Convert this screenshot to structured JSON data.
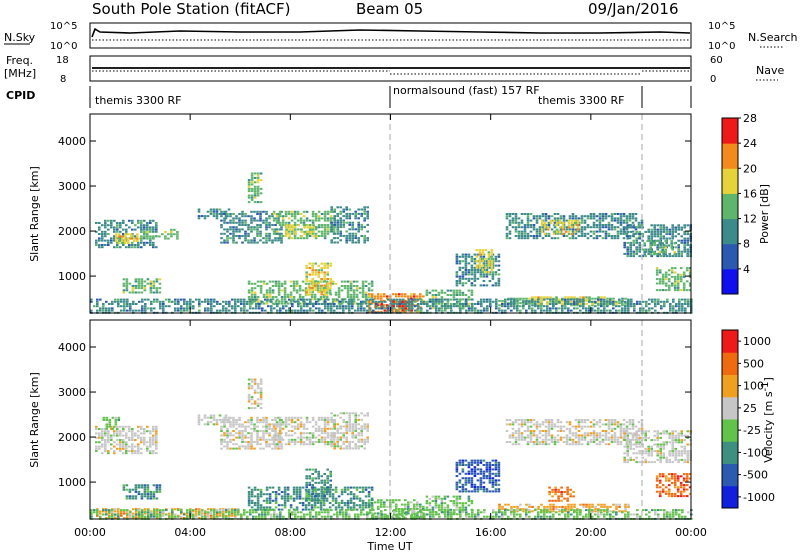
{
  "header": {
    "station": "South Pole Station (fitACF)",
    "beam": "Beam 05",
    "date": "09/Jan/2016"
  },
  "noise_panel": {
    "left_label": "N.Sky",
    "right_label": "N.Search",
    "left_ticks": [
      "10^5",
      "10^0"
    ],
    "right_ticks": [
      "10^5",
      "10^0"
    ]
  },
  "freq_panel": {
    "left_label_line1": "Freq.",
    "left_label_line2": "[MHz]",
    "right_label": "Nave",
    "left_ticks": [
      "18",
      "8"
    ],
    "right_ticks": [
      "60",
      "0"
    ]
  },
  "cpid_panel": {
    "label": "CPID",
    "segments": [
      {
        "text": "themis 3300 RF",
        "start_hour": 0
      },
      {
        "text": "normalsound (fast) 157 RF",
        "start_hour": 12
      },
      {
        "text": "themis 3300 RF",
        "start_hour": 22
      }
    ]
  },
  "chart_data": [
    {
      "type": "heatmap",
      "name": "power",
      "title": "",
      "xlabel": "Time UT",
      "ylabel": "Slant Range [km]",
      "x_unit": "hours UT",
      "xlim": [
        0,
        24
      ],
      "ylim": [
        180,
        4600
      ],
      "x_ticks": [
        0,
        4,
        8,
        12,
        16,
        20,
        24
      ],
      "x_tick_labels": [
        "00:00",
        "04:00",
        "08:00",
        "12:00",
        "16:00",
        "20:00",
        "00:00"
      ],
      "y_ticks": [
        1000,
        2000,
        3000,
        4000
      ],
      "y_tick_labels": [
        "1000",
        "2000",
        "3000",
        "4000"
      ],
      "colorbar": {
        "label": "Power [dB]",
        "tick_labels": [
          "4",
          "8",
          "12",
          "16",
          "20",
          "24",
          "28"
        ],
        "colors": [
          "#1010ee",
          "#2c58b0",
          "#3d8a8a",
          "#5fb56b",
          "#e6d23a",
          "#f28a1c",
          "#ee1a1a"
        ]
      },
      "regions": [
        {
          "t0": 0.2,
          "t1": 2.6,
          "r0": 1650,
          "r1": 2250,
          "level": 2
        },
        {
          "t0": 1.0,
          "t1": 2.0,
          "r0": 1750,
          "r1": 1950,
          "level": 4
        },
        {
          "t0": 2.0,
          "t1": 3.5,
          "r0": 1850,
          "r1": 2050,
          "level": 3
        },
        {
          "t0": 1.3,
          "t1": 2.8,
          "r0": 650,
          "r1": 950,
          "level": 3
        },
        {
          "t0": 4.3,
          "t1": 5.5,
          "r0": 2300,
          "r1": 2500,
          "level": 2
        },
        {
          "t0": 5.2,
          "t1": 7.6,
          "r0": 1750,
          "r1": 2450,
          "level": 2
        },
        {
          "t0": 6.3,
          "t1": 6.8,
          "r0": 2650,
          "r1": 3300,
          "level": 3
        },
        {
          "t0": 7.3,
          "t1": 9.7,
          "r0": 1850,
          "r1": 2450,
          "level": 3
        },
        {
          "t0": 7.8,
          "t1": 9.0,
          "r0": 1900,
          "r1": 2150,
          "level": 4
        },
        {
          "t0": 6.3,
          "t1": 11.3,
          "r0": 380,
          "r1": 900,
          "level": 3
        },
        {
          "t0": 8.6,
          "t1": 9.6,
          "r0": 600,
          "r1": 1300,
          "level": 4
        },
        {
          "t0": 9.6,
          "t1": 11.1,
          "r0": 1750,
          "r1": 2550,
          "level": 2
        },
        {
          "t0": 11.1,
          "t1": 13.3,
          "r0": 200,
          "r1": 620,
          "level": 5
        },
        {
          "t0": 11.6,
          "t1": 12.8,
          "r0": 250,
          "r1": 450,
          "level": 6
        },
        {
          "t0": 13.4,
          "t1": 15.2,
          "r0": 300,
          "r1": 700,
          "level": 3
        },
        {
          "t0": 14.6,
          "t1": 16.3,
          "r0": 800,
          "r1": 1500,
          "level": 2
        },
        {
          "t0": 15.4,
          "t1": 16.1,
          "r0": 1100,
          "r1": 1600,
          "level": 4
        },
        {
          "t0": 16.6,
          "t1": 22.0,
          "r0": 1850,
          "r1": 2400,
          "level": 2
        },
        {
          "t0": 18.0,
          "t1": 19.5,
          "r0": 1950,
          "r1": 2250,
          "level": 4
        },
        {
          "t0": 21.3,
          "t1": 24.0,
          "r0": 1450,
          "r1": 2150,
          "level": 2
        },
        {
          "t0": 22.1,
          "t1": 23.3,
          "r0": 1500,
          "r1": 1800,
          "level": 3
        },
        {
          "t0": 16.3,
          "t1": 21.5,
          "r0": 350,
          "r1": 520,
          "level": 3
        },
        {
          "t0": 17.5,
          "t1": 20.5,
          "r0": 400,
          "r1": 550,
          "level": 4
        },
        {
          "t0": 22.6,
          "t1": 24.0,
          "r0": 700,
          "r1": 1200,
          "level": 3
        },
        {
          "t0": 0.0,
          "t1": 24.0,
          "r0": 180,
          "r1": 500,
          "level": 2
        }
      ]
    },
    {
      "type": "heatmap",
      "name": "velocity",
      "title": "",
      "xlabel": "Time UT",
      "ylabel": "Slant Range [km]",
      "x_unit": "hours UT",
      "xlim": [
        0,
        24
      ],
      "ylim": [
        180,
        4600
      ],
      "x_ticks": [
        0,
        4,
        8,
        12,
        16,
        20,
        24
      ],
      "x_tick_labels": [
        "00:00",
        "04:00",
        "08:00",
        "12:00",
        "16:00",
        "20:00",
        "00:00"
      ],
      "y_ticks": [
        1000,
        2000,
        3000,
        4000
      ],
      "y_tick_labels": [
        "1000",
        "2000",
        "3000",
        "4000"
      ],
      "colorbar": {
        "label_main": "Velocity",
        "label_unit": "[m s",
        "label_sup": "-1",
        "label_close": "]",
        "tick_labels": [
          "1000",
          "500",
          "100",
          "25",
          "-25",
          "-100",
          "-500",
          "-1000"
        ],
        "colors": [
          "#1020dd",
          "#2c5ab0",
          "#3e8f80",
          "#63c24a",
          "#c6c6c6",
          "#f0a020",
          "#f06a10",
          "#ee1a1a"
        ]
      },
      "regions": [
        {
          "t0": 0.2,
          "t1": 2.6,
          "r0": 1650,
          "r1": 2250,
          "level": 4
        },
        {
          "t0": 0.5,
          "t1": 1.2,
          "r0": 2200,
          "r1": 2450,
          "level": 3
        },
        {
          "t0": 1.3,
          "t1": 2.8,
          "r0": 650,
          "r1": 950,
          "level": 2
        },
        {
          "t0": 4.3,
          "t1": 5.5,
          "r0": 2300,
          "r1": 2500,
          "level": 4
        },
        {
          "t0": 5.2,
          "t1": 7.6,
          "r0": 1750,
          "r1": 2450,
          "level": 4
        },
        {
          "t0": 6.3,
          "t1": 6.8,
          "r0": 2650,
          "r1": 3300,
          "level": 4
        },
        {
          "t0": 7.3,
          "t1": 9.7,
          "r0": 1850,
          "r1": 2450,
          "level": 4
        },
        {
          "t0": 6.3,
          "t1": 11.3,
          "r0": 380,
          "r1": 900,
          "level": 2
        },
        {
          "t0": 8.6,
          "t1": 9.6,
          "r0": 600,
          "r1": 1300,
          "level": 2
        },
        {
          "t0": 9.6,
          "t1": 11.1,
          "r0": 1750,
          "r1": 2550,
          "level": 4
        },
        {
          "t0": 11.1,
          "t1": 13.3,
          "r0": 200,
          "r1": 620,
          "level": 3
        },
        {
          "t0": 13.4,
          "t1": 15.2,
          "r0": 300,
          "r1": 700,
          "level": 3
        },
        {
          "t0": 14.6,
          "t1": 16.3,
          "r0": 800,
          "r1": 1500,
          "level": 1
        },
        {
          "t0": 16.6,
          "t1": 22.0,
          "r0": 1850,
          "r1": 2400,
          "level": 4
        },
        {
          "t0": 21.3,
          "t1": 24.0,
          "r0": 1450,
          "r1": 2150,
          "level": 4
        },
        {
          "t0": 16.3,
          "t1": 21.5,
          "r0": 350,
          "r1": 520,
          "level": 5
        },
        {
          "t0": 18.3,
          "t1": 19.3,
          "r0": 600,
          "r1": 900,
          "level": 6
        },
        {
          "t0": 22.6,
          "t1": 24.0,
          "r0": 700,
          "r1": 1200,
          "level": 6
        },
        {
          "t0": 0.0,
          "t1": 6.0,
          "r0": 180,
          "r1": 420,
          "level": 5
        },
        {
          "t0": 0.0,
          "t1": 24.0,
          "r0": 180,
          "r1": 400,
          "level": 3
        }
      ]
    }
  ]
}
